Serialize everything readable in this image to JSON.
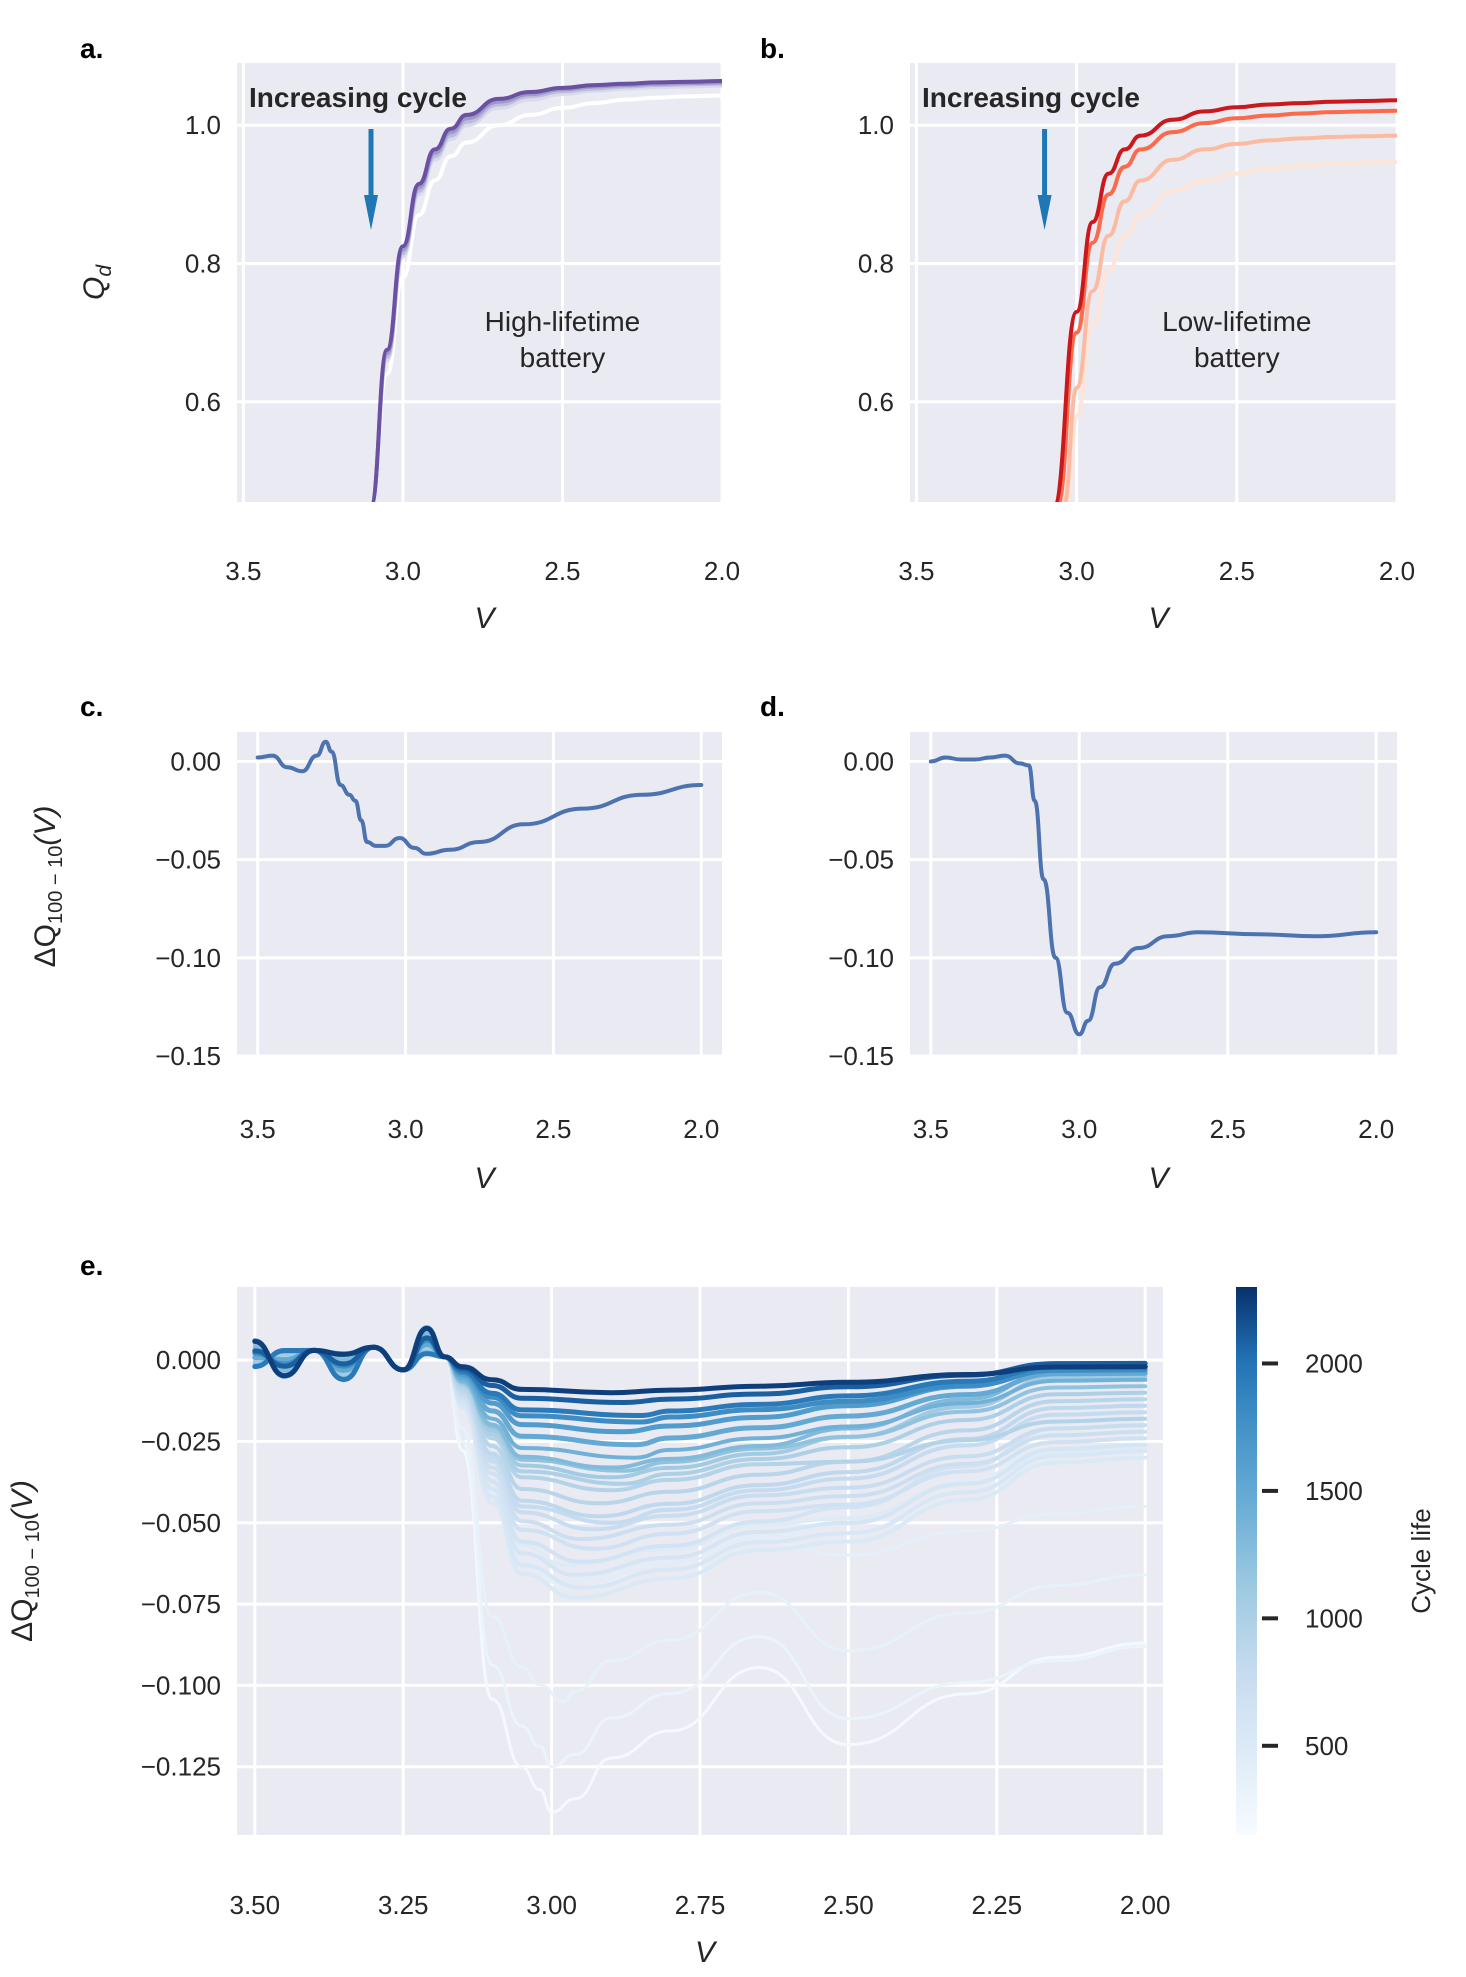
{
  "colors": {
    "axes_bg": "#eaeaf2",
    "grid": "#ffffff",
    "purple": "#6a51a3",
    "red": "#cb181d",
    "line_blue": "#4c72b0",
    "arrow_blue": "#1f77b4",
    "blues_dark": "#08306b",
    "blues_light": "#f7fbff"
  },
  "chart_data": [
    {
      "panel": "a.",
      "type": "line",
      "xlabel": "V",
      "ylabel": "Q_d",
      "xlim": [
        3.52,
        2.0
      ],
      "ylim": [
        0.455,
        1.09
      ],
      "xticks": [
        3.5,
        3.0,
        2.5,
        2.0
      ],
      "xtick_labels": [
        "3.5",
        "3.0",
        "2.5",
        "2.0"
      ],
      "yticks": [
        1.0,
        0.8,
        0.6
      ],
      "ytick_labels": [
        "1.0",
        "0.8",
        "0.6"
      ],
      "grid": true,
      "annotations": {
        "arrow_text": "Increasing cycle",
        "label_line1": "High-lifetime",
        "label_line2": "battery"
      },
      "series": [
        {
          "color": "#ffffff",
          "x": [
            3.1,
            3.05,
            3.0,
            2.95,
            2.9,
            2.85,
            2.8,
            2.7,
            2.6,
            2.5,
            2.4,
            2.3,
            2.2,
            2.1,
            2.0
          ],
          "y": [
            0.45,
            0.64,
            0.78,
            0.87,
            0.92,
            0.955,
            0.975,
            1.0,
            1.015,
            1.025,
            1.032,
            1.037,
            1.04,
            1.042,
            1.043
          ]
        },
        {
          "color": "#dadaeb",
          "x": [
            3.1,
            3.05,
            3.0,
            2.95,
            2.9,
            2.85,
            2.8,
            2.7,
            2.6,
            2.5,
            2.4,
            2.3,
            2.2,
            2.1,
            2.0
          ],
          "y": [
            0.45,
            0.66,
            0.81,
            0.9,
            0.95,
            0.98,
            1.0,
            1.025,
            1.037,
            1.045,
            1.05,
            1.053,
            1.055,
            1.056,
            1.057
          ]
        },
        {
          "color": "#bcbddc",
          "x": [
            3.1,
            3.05,
            3.0,
            2.95,
            2.9,
            2.85,
            2.8,
            2.7,
            2.6,
            2.5,
            2.4,
            2.3,
            2.2,
            2.1,
            2.0
          ],
          "y": [
            0.45,
            0.665,
            0.815,
            0.905,
            0.955,
            0.985,
            1.005,
            1.03,
            1.042,
            1.049,
            1.053,
            1.056,
            1.058,
            1.059,
            1.06
          ]
        },
        {
          "color": "#9e9ac8",
          "x": [
            3.1,
            3.05,
            3.0,
            2.95,
            2.9,
            2.85,
            2.8,
            2.7,
            2.6,
            2.5,
            2.4,
            2.3,
            2.2,
            2.1,
            2.0
          ],
          "y": [
            0.45,
            0.67,
            0.82,
            0.91,
            0.96,
            0.99,
            1.01,
            1.034,
            1.045,
            1.052,
            1.056,
            1.058,
            1.06,
            1.061,
            1.062
          ]
        },
        {
          "color": "#6a51a3",
          "x": [
            3.1,
            3.05,
            3.0,
            2.95,
            2.9,
            2.85,
            2.8,
            2.7,
            2.6,
            2.5,
            2.4,
            2.3,
            2.2,
            2.1,
            2.0
          ],
          "y": [
            0.45,
            0.675,
            0.825,
            0.915,
            0.965,
            0.995,
            1.015,
            1.038,
            1.048,
            1.054,
            1.058,
            1.06,
            1.062,
            1.063,
            1.064
          ]
        }
      ]
    },
    {
      "panel": "b.",
      "type": "line",
      "xlabel": "V",
      "ylabel": "",
      "xlim": [
        3.52,
        2.0
      ],
      "ylim": [
        0.455,
        1.09
      ],
      "xticks": [
        3.5,
        3.0,
        2.5,
        2.0
      ],
      "xtick_labels": [
        "3.5",
        "3.0",
        "2.5",
        "2.0"
      ],
      "yticks": [
        1.0,
        0.8,
        0.6
      ],
      "ytick_labels": [
        "1.0",
        "0.8",
        "0.6"
      ],
      "grid": true,
      "annotations": {
        "arrow_text": "Increasing cycle",
        "label_line1": "Low-lifetime",
        "label_line2": "battery"
      },
      "series": [
        {
          "color": "#fee5d9",
          "x": [
            3.03,
            3.0,
            2.95,
            2.9,
            2.85,
            2.8,
            2.7,
            2.6,
            2.5,
            2.4,
            2.3,
            2.2,
            2.1,
            2.0
          ],
          "y": [
            0.45,
            0.58,
            0.71,
            0.79,
            0.84,
            0.87,
            0.905,
            0.92,
            0.93,
            0.937,
            0.941,
            0.944,
            0.946,
            0.947
          ]
        },
        {
          "color": "#fcbba1",
          "x": [
            3.04,
            3.0,
            2.95,
            2.9,
            2.85,
            2.8,
            2.7,
            2.6,
            2.5,
            2.4,
            2.3,
            2.2,
            2.1,
            2.0
          ],
          "y": [
            0.45,
            0.62,
            0.76,
            0.84,
            0.89,
            0.92,
            0.95,
            0.965,
            0.973,
            0.978,
            0.981,
            0.983,
            0.984,
            0.985
          ]
        },
        {
          "color": "#fb6a4a",
          "x": [
            3.06,
            3.0,
            2.95,
            2.9,
            2.85,
            2.8,
            2.7,
            2.6,
            2.5,
            2.4,
            2.3,
            2.2,
            2.1,
            2.0
          ],
          "y": [
            0.45,
            0.7,
            0.83,
            0.9,
            0.94,
            0.965,
            0.99,
            1.003,
            1.01,
            1.014,
            1.017,
            1.019,
            1.02,
            1.021
          ]
        },
        {
          "color": "#cb181d",
          "x": [
            3.07,
            3.0,
            2.95,
            2.9,
            2.85,
            2.8,
            2.7,
            2.6,
            2.5,
            2.4,
            2.3,
            2.2,
            2.1,
            2.0
          ],
          "y": [
            0.45,
            0.73,
            0.86,
            0.93,
            0.965,
            0.985,
            1.008,
            1.02,
            1.026,
            1.03,
            1.032,
            1.034,
            1.035,
            1.036
          ]
        }
      ]
    },
    {
      "panel": "c.",
      "type": "line",
      "xlabel": "V",
      "ylabel": "ΔQ_{100-10}(V)",
      "xlim": [
        3.57,
        1.93
      ],
      "ylim": [
        -0.1505,
        0.015
      ],
      "xticks": [
        3.5,
        3.0,
        2.5,
        2.0
      ],
      "xtick_labels": [
        "3.5",
        "3.0",
        "2.5",
        "2.0"
      ],
      "yticks": [
        0.0,
        -0.05,
        -0.1,
        -0.15
      ],
      "ytick_labels": [
        "0.00",
        "−0.05",
        "−0.10",
        "−0.15"
      ],
      "grid": true,
      "series": [
        {
          "color": "#4c72b0",
          "x": [
            3.5,
            3.45,
            3.4,
            3.35,
            3.3,
            3.27,
            3.25,
            3.22,
            3.19,
            3.17,
            3.15,
            3.13,
            3.1,
            3.07,
            3.02,
            2.97,
            2.93,
            2.85,
            2.75,
            2.6,
            2.4,
            2.2,
            2.0
          ],
          "y": [
            0.002,
            0.003,
            -0.003,
            -0.005,
            0.003,
            0.01,
            0.005,
            -0.012,
            -0.017,
            -0.02,
            -0.03,
            -0.041,
            -0.043,
            -0.043,
            -0.039,
            -0.044,
            -0.047,
            -0.045,
            -0.041,
            -0.032,
            -0.024,
            -0.017,
            -0.012
          ]
        }
      ]
    },
    {
      "panel": "d.",
      "type": "line",
      "xlabel": "V",
      "ylabel": "",
      "xlim": [
        3.57,
        1.93
      ],
      "ylim": [
        -0.1505,
        0.015
      ],
      "xticks": [
        3.5,
        3.0,
        2.5,
        2.0
      ],
      "xtick_labels": [
        "3.5",
        "3.0",
        "2.5",
        "2.0"
      ],
      "yticks": [
        0.0,
        -0.05,
        -0.1,
        -0.15
      ],
      "ytick_labels": [
        "0.00",
        "−0.05",
        "−0.10",
        "−0.15"
      ],
      "grid": true,
      "series": [
        {
          "color": "#4c72b0",
          "x": [
            3.5,
            3.45,
            3.4,
            3.35,
            3.3,
            3.25,
            3.2,
            3.17,
            3.15,
            3.12,
            3.08,
            3.04,
            3.0,
            2.97,
            2.93,
            2.88,
            2.8,
            2.7,
            2.6,
            2.4,
            2.2,
            2.0
          ],
          "y": [
            0.0,
            0.002,
            0.001,
            0.001,
            0.002,
            0.003,
            -0.001,
            -0.002,
            -0.02,
            -0.06,
            -0.1,
            -0.128,
            -0.139,
            -0.132,
            -0.115,
            -0.103,
            -0.095,
            -0.089,
            -0.087,
            -0.088,
            -0.089,
            -0.087
          ]
        }
      ]
    },
    {
      "panel": "e.",
      "type": "line",
      "xlabel": "V",
      "ylabel": "ΔQ_{100-10}(V)",
      "xlim": [
        3.53,
        1.97
      ],
      "ylim": [
        -0.146,
        0.0225
      ],
      "xticks": [
        3.5,
        3.25,
        3.0,
        2.75,
        2.5,
        2.25,
        2.0
      ],
      "xtick_labels": [
        "3.50",
        "3.25",
        "3.00",
        "2.75",
        "2.50",
        "2.25",
        "2.00"
      ],
      "yticks": [
        0.0,
        -0.025,
        -0.05,
        -0.075,
        -0.1,
        -0.125
      ],
      "ytick_labels": [
        "0.000",
        "−0.025",
        "−0.050",
        "−0.075",
        "−0.100",
        "−0.125"
      ],
      "grid": true,
      "colorbar": {
        "label": "Cycle life",
        "range": [
          150,
          2300
        ],
        "ticks": [
          2000,
          1500,
          1000,
          500
        ],
        "tick_labels": [
          "2000",
          "1500",
          "1000",
          "500"
        ]
      },
      "series": [
        {
          "cycle_life": 2237,
          "dip": -0.01,
          "end": -0.002,
          "pos": 2.9
        },
        {
          "cycle_life": 2100,
          "dip": -0.013,
          "end": -0.001,
          "pos": 2.88
        },
        {
          "cycle_life": 1950,
          "dip": -0.017,
          "end": -0.002,
          "pos": 2.85
        },
        {
          "cycle_life": 1800,
          "dip": -0.019,
          "end": -0.003,
          "pos": 2.85
        },
        {
          "cycle_life": 1650,
          "dip": -0.022,
          "end": -0.002,
          "pos": 2.88
        },
        {
          "cycle_life": 1500,
          "dip": -0.026,
          "end": -0.004,
          "pos": 2.86
        },
        {
          "cycle_life": 1400,
          "dip": -0.03,
          "end": -0.006,
          "pos": 2.86
        },
        {
          "cycle_life": 1300,
          "dip": -0.033,
          "end": -0.003,
          "pos": 2.9
        },
        {
          "cycle_life": 1200,
          "dip": -0.034,
          "end": -0.008,
          "pos": 2.88
        },
        {
          "cycle_life": 1100,
          "dip": -0.036,
          "end": -0.005,
          "pos": 2.9
        },
        {
          "cycle_life": 1000,
          "dip": -0.038,
          "end": -0.01,
          "pos": 2.88
        },
        {
          "cycle_life": 950,
          "dip": -0.04,
          "end": -0.018,
          "pos": 2.9
        },
        {
          "cycle_life": 900,
          "dip": -0.044,
          "end": -0.012,
          "pos": 2.92
        },
        {
          "cycle_life": 850,
          "dip": -0.048,
          "end": -0.014,
          "pos": 2.92
        },
        {
          "cycle_life": 800,
          "dip": -0.05,
          "end": -0.016,
          "pos": 2.9
        },
        {
          "cycle_life": 760,
          "dip": -0.052,
          "end": -0.02,
          "pos": 2.93
        },
        {
          "cycle_life": 720,
          "dip": -0.055,
          "end": -0.022,
          "pos": 2.95
        },
        {
          "cycle_life": 680,
          "dip": -0.058,
          "end": -0.024,
          "pos": 2.93
        },
        {
          "cycle_life": 640,
          "dip": -0.062,
          "end": -0.02,
          "pos": 2.95
        },
        {
          "cycle_life": 600,
          "dip": -0.066,
          "end": -0.026,
          "pos": 2.96
        },
        {
          "cycle_life": 560,
          "dip": -0.07,
          "end": -0.028,
          "pos": 2.95
        },
        {
          "cycle_life": 520,
          "dip": -0.073,
          "end": -0.03,
          "pos": 2.96
        },
        {
          "cycle_life": 480,
          "dip": -0.063,
          "end": -0.027,
          "pos": 2.98
        },
        {
          "cycle_life": 440,
          "dip": -0.068,
          "end": -0.024,
          "pos": 2.98
        },
        {
          "cycle_life": 400,
          "dip": -0.07,
          "end": -0.045,
          "pos": 2.97
        },
        {
          "cycle_life": 360,
          "dip": -0.105,
          "end": -0.066,
          "pos": 2.98
        },
        {
          "cycle_life": 300,
          "dip": -0.125,
          "end": -0.088,
          "pos": 3.0
        },
        {
          "cycle_life": 200,
          "dip": -0.139,
          "end": -0.087,
          "pos": 3.0
        }
      ]
    }
  ]
}
